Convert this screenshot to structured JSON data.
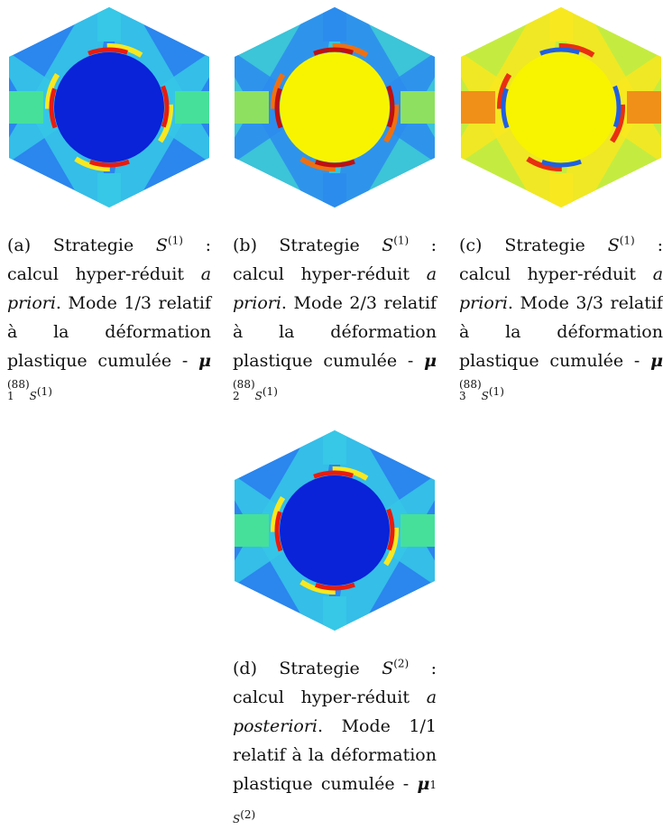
{
  "figures": [
    {
      "label": "(a)",
      "strategy": "Strategie",
      "strategy_symbol": "S",
      "strategy_superscript": "(1)",
      "colon": ":",
      "text1": "calcul hyper-réduit",
      "emphasis": "a priori",
      "text2": ". Mode 1/3 relatif à la déformation plastique cumulée -",
      "mu": "μ",
      "mu_subscript": "1",
      "mu_superscript": "(88)",
      "mu_strategy_symbol": "S",
      "mu_strategy_superscript": "(1)"
    },
    {
      "label": "(b)",
      "strategy": "Strategie",
      "strategy_symbol": "S",
      "strategy_superscript": "(1)",
      "colon": ":",
      "text1": "calcul hyper-réduit",
      "emphasis": "a priori",
      "text2": ". Mode 2/3 relatif à la déformation plastique cumulée -",
      "mu": "μ",
      "mu_subscript": "2",
      "mu_superscript": "(88)",
      "mu_strategy_symbol": "S",
      "mu_strategy_superscript": "(1)"
    },
    {
      "label": "(c)",
      "strategy": "Strategie",
      "strategy_symbol": "S",
      "strategy_superscript": "(1)",
      "colon": ":",
      "text1": "calcul hyper-réduit",
      "emphasis": "a priori",
      "text2": ". Mode 3/3 relatif à la déformation plastique cumulée -",
      "mu": "μ",
      "mu_subscript": "3",
      "mu_superscript": "(88)",
      "mu_strategy_symbol": "S",
      "mu_strategy_superscript": "(1)"
    },
    {
      "label": "(d)",
      "strategy": "Strategie",
      "strategy_symbol": "S",
      "strategy_superscript": "(2)",
      "colon": ":",
      "text1": "calcul hyper-réduit",
      "emphasis": "a posteriori",
      "text2": ". Mode 1/1 relatif à la déformation plastique cumulée -",
      "mu": "μ",
      "mu_subscript": "1",
      "mu_strategy_symbol": "S",
      "mu_strategy_superscript": "(2)"
    }
  ]
}
